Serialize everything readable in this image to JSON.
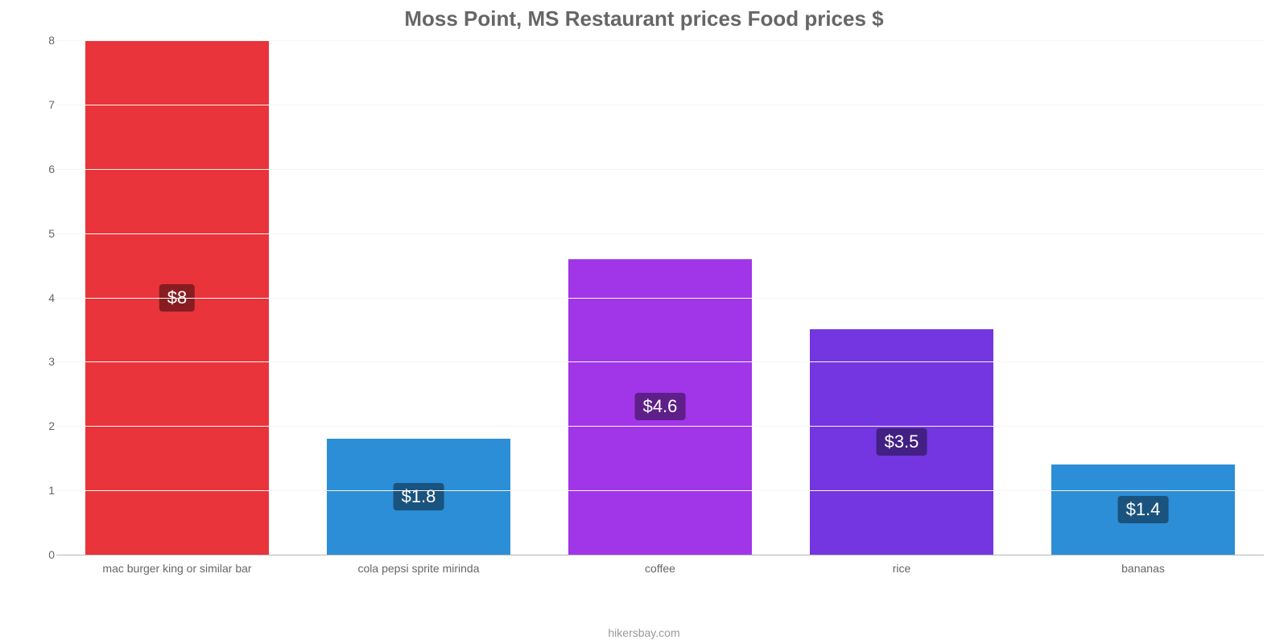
{
  "chart": {
    "type": "bar",
    "title": "Moss Point, MS Restaurant prices Food prices $",
    "title_fontsize": 26,
    "title_color": "#666666",
    "background_color": "#ffffff",
    "credit": "hikersbay.com",
    "credit_color": "#999999",
    "ylim": [
      0,
      8
    ],
    "ytick_step": 1,
    "yticks": [
      0,
      1,
      2,
      3,
      4,
      5,
      6,
      7,
      8
    ],
    "ytick_color": "#666666",
    "gridline_zero_color": "#b5b5b5",
    "gridline_color": "#f6f5f5",
    "xlabel_color": "#666666",
    "xlabel_fontsize": 14,
    "value_label_fontsize": 22,
    "value_label_text_color": "#ffffff",
    "bar_width_pct": 76,
    "bars": [
      {
        "category": "mac burger king or similar bar",
        "value": 8.0,
        "display": "$8",
        "fill": "#e8343a",
        "label_bg": "#871d21"
      },
      {
        "category": "cola pepsi sprite mirinda",
        "value": 1.8,
        "display": "$1.8",
        "fill": "#2c8ed6",
        "label_bg": "#1a537e"
      },
      {
        "category": "coffee",
        "value": 4.6,
        "display": "$4.6",
        "fill": "#a135e8",
        "label_bg": "#5e1f89"
      },
      {
        "category": "rice",
        "value": 3.5,
        "display": "$3.5",
        "fill": "#7436e1",
        "label_bg": "#432084"
      },
      {
        "category": "bananas",
        "value": 1.4,
        "display": "$1.4",
        "fill": "#2c8ed6",
        "label_bg": "#1a537e"
      }
    ]
  }
}
